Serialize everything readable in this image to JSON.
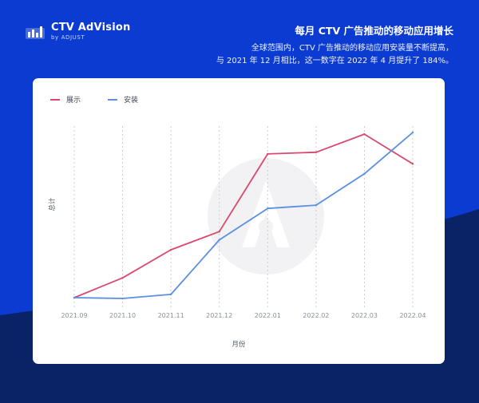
{
  "brand": {
    "name": "CTV AdVision",
    "byline": "by ADJUST"
  },
  "header": {
    "title": "每月 CTV 广告推动的移动应用增长",
    "subtitle_line1": "全球范围内，CTV 广告推动的移动应用安装量不断提高，",
    "subtitle_line2": "与 2021 年 12 月相比，这一数字在 2022 年 4 月提升了 184%。"
  },
  "colors": {
    "background": "#0b3bd1",
    "impressions": "#d9496e",
    "installs": "#5b8fe0"
  },
  "chart_data": {
    "type": "line",
    "xlabel": "月份",
    "ylabel": "总计",
    "categories": [
      "2021.09",
      "2021.10",
      "2021.11",
      "2021.12",
      "2022.01",
      "2022.02",
      "2022.03",
      "2022.04"
    ],
    "ylim": [
      0,
      100
    ],
    "grid": "vertical dashed",
    "legend_position": "top-left",
    "series": [
      {
        "name": "展示",
        "color": "#d9496e",
        "values": [
          0,
          12,
          29,
          40,
          87,
          88,
          99,
          81
        ]
      },
      {
        "name": "安装",
        "color": "#5b8fe0",
        "values": [
          0,
          -0.5,
          2,
          35,
          54,
          56,
          75,
          100
        ]
      }
    ]
  }
}
